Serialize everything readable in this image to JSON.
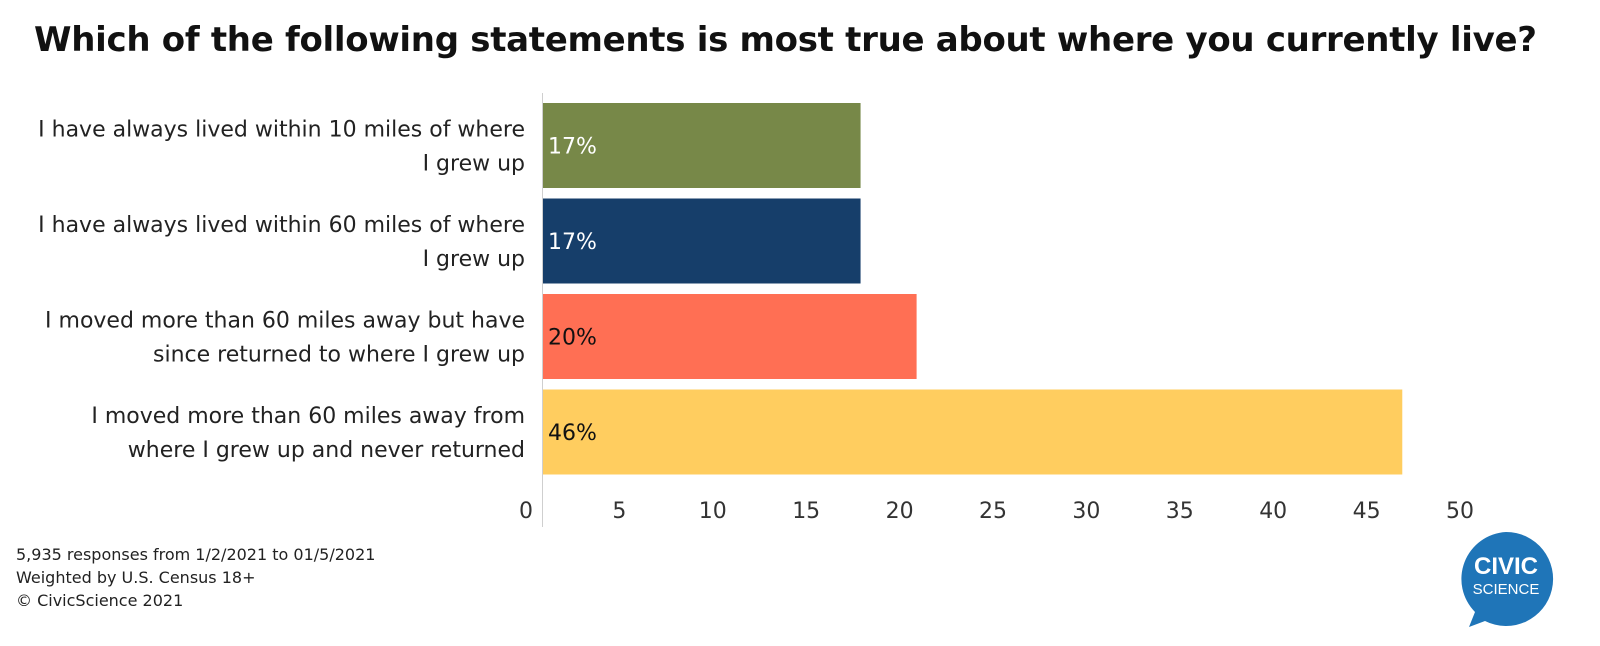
{
  "chart_data": {
    "type": "bar",
    "orientation": "horizontal",
    "title": "Which of the following statements is most true about where you currently live?",
    "categories": [
      [
        "I have always lived within 10 miles of where",
        "I grew up"
      ],
      [
        "I have always lived within 60 miles of where",
        "I grew up"
      ],
      [
        "I moved more than 60 miles away but have",
        "since returned to where I grew up"
      ],
      [
        "I moved more than 60 miles away from",
        "where I grew up and never returned"
      ]
    ],
    "values": [
      17,
      17,
      20,
      46
    ],
    "value_labels": [
      "17%",
      "17%",
      "20%",
      "46%"
    ],
    "bar_colors": [
      "#778848",
      "#163e6a",
      "#ff6f54",
      "#ffcd5f"
    ],
    "value_label_colors": [
      "#ffffff",
      "#ffffff",
      "#111111",
      "#111111"
    ],
    "xlim": [
      0,
      50
    ],
    "xticks": [
      0,
      5,
      10,
      15,
      20,
      25,
      30,
      35,
      40,
      45,
      50
    ],
    "grid": false,
    "legend": "none"
  },
  "footnotes": [
    "5,935 responses from 1/2/2021 to 01/5/2021",
    "Weighted by U.S. Census 18+",
    "© CivicScience 2021"
  ],
  "logo": {
    "line1": "CIVIC",
    "line2": "SCIENCE",
    "color": "#1f75b8"
  }
}
